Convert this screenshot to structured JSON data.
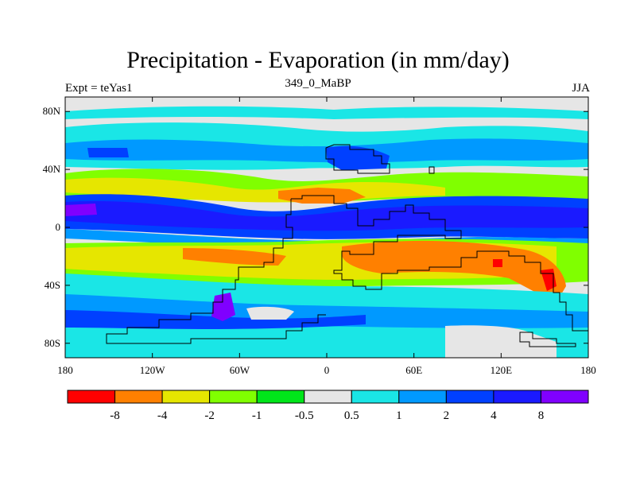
{
  "title": "Precipitation - Evaporation (in mm/day)",
  "left_label": "Expt = teYas1",
  "center_label": "349_0_MaBP",
  "right_label": "JJA",
  "lat_ticks": [
    "80N",
    "40N",
    "0",
    "40S",
    "80S"
  ],
  "lon_ticks": [
    "180",
    "120W",
    "60W",
    "0",
    "60E",
    "120E",
    "180"
  ],
  "colorbar": {
    "colors": [
      "#ff0000",
      "#ff8000",
      "#e6e600",
      "#80ff00",
      "#00e61a",
      "#e6e6e6",
      "#1ae6e6",
      "#0099ff",
      "#0040ff",
      "#1a1aff",
      "#8000ff"
    ],
    "labels": [
      "-8",
      "-4",
      "-2",
      "-1",
      "-0.5",
      "0.5",
      "1",
      "2",
      "4",
      "8"
    ]
  }
}
